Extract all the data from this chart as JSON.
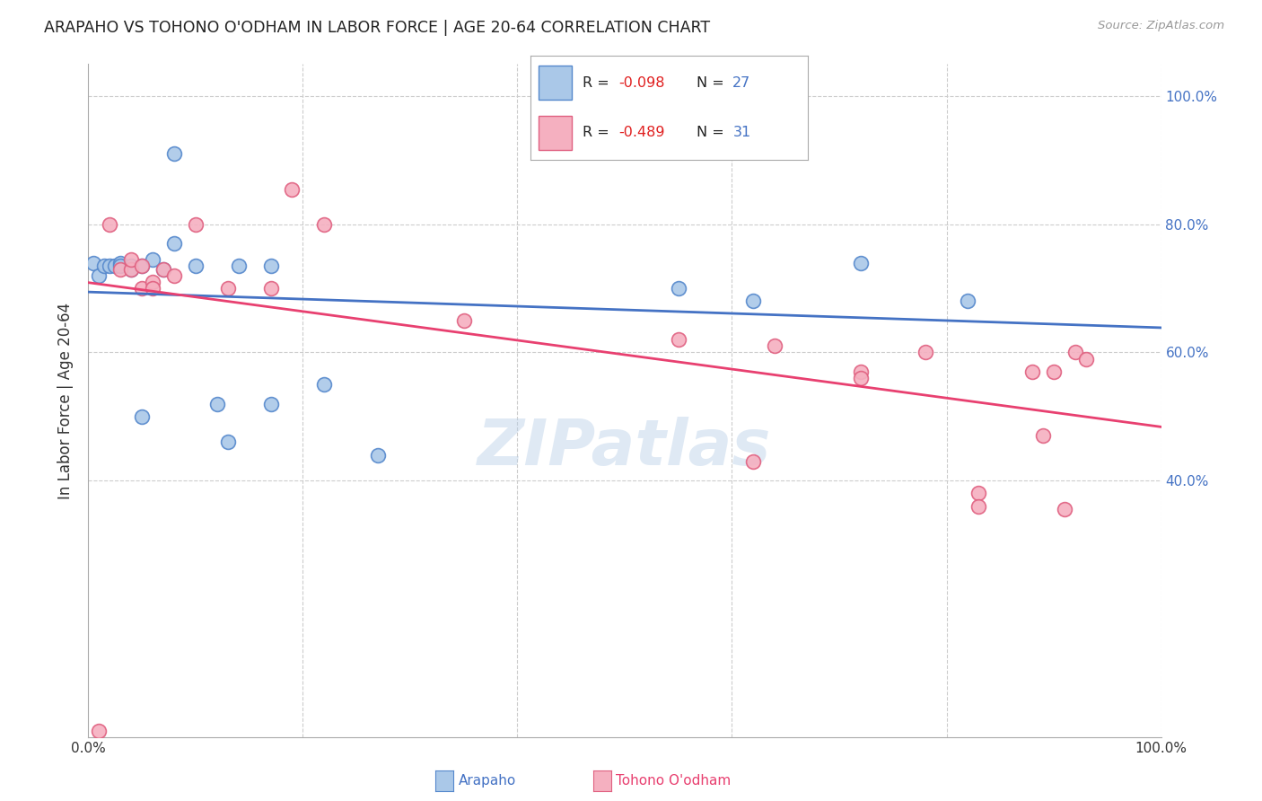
{
  "title": "ARAPAHO VS TOHONO O'ODHAM IN LABOR FORCE | AGE 20-64 CORRELATION CHART",
  "source": "Source: ZipAtlas.com",
  "ylabel": "In Labor Force | Age 20-64",
  "xlim": [
    0.0,
    1.0
  ],
  "ylim": [
    0.0,
    1.05
  ],
  "background_color": "#ffffff",
  "grid_color": "#cccccc",
  "arapaho_color": "#aac8e8",
  "arapaho_edge_color": "#5588cc",
  "tohono_color": "#f5b0c0",
  "tohono_edge_color": "#e06080",
  "trendline_arapaho_color": "#4472c4",
  "trendline_tohono_color": "#e84070",
  "legend_arapaho_R": "-0.098",
  "legend_arapaho_N": "27",
  "legend_tohono_R": "-0.489",
  "legend_tohono_N": "31",
  "watermark": "ZIPatlas",
  "arapaho_x": [
    0.005,
    0.01,
    0.015,
    0.02,
    0.025,
    0.03,
    0.03,
    0.04,
    0.04,
    0.05,
    0.05,
    0.06,
    0.07,
    0.08,
    0.08,
    0.1,
    0.12,
    0.13,
    0.14,
    0.17,
    0.17,
    0.22,
    0.27,
    0.55,
    0.62,
    0.72,
    0.82
  ],
  "arapaho_y": [
    0.74,
    0.72,
    0.735,
    0.735,
    0.735,
    0.74,
    0.735,
    0.735,
    0.73,
    0.5,
    0.735,
    0.745,
    0.73,
    0.77,
    0.91,
    0.735,
    0.52,
    0.46,
    0.735,
    0.52,
    0.735,
    0.55,
    0.44,
    0.7,
    0.68,
    0.74,
    0.68
  ],
  "tohono_x": [
    0.01,
    0.02,
    0.03,
    0.04,
    0.04,
    0.05,
    0.05,
    0.06,
    0.06,
    0.07,
    0.08,
    0.1,
    0.13,
    0.17,
    0.19,
    0.22,
    0.35,
    0.55,
    0.62,
    0.64,
    0.72,
    0.72,
    0.78,
    0.83,
    0.83,
    0.88,
    0.89,
    0.9,
    0.91,
    0.92,
    0.93
  ],
  "tohono_y": [
    0.01,
    0.8,
    0.73,
    0.73,
    0.745,
    0.7,
    0.735,
    0.71,
    0.7,
    0.73,
    0.72,
    0.8,
    0.7,
    0.7,
    0.855,
    0.8,
    0.65,
    0.62,
    0.43,
    0.61,
    0.57,
    0.56,
    0.6,
    0.38,
    0.36,
    0.57,
    0.47,
    0.57,
    0.355,
    0.6,
    0.59
  ],
  "marker_size": 130,
  "grid_yticks": [
    0.4,
    0.6,
    0.8,
    1.0
  ],
  "grid_xticks": [
    0.2,
    0.4,
    0.6,
    0.8,
    1.0
  ]
}
